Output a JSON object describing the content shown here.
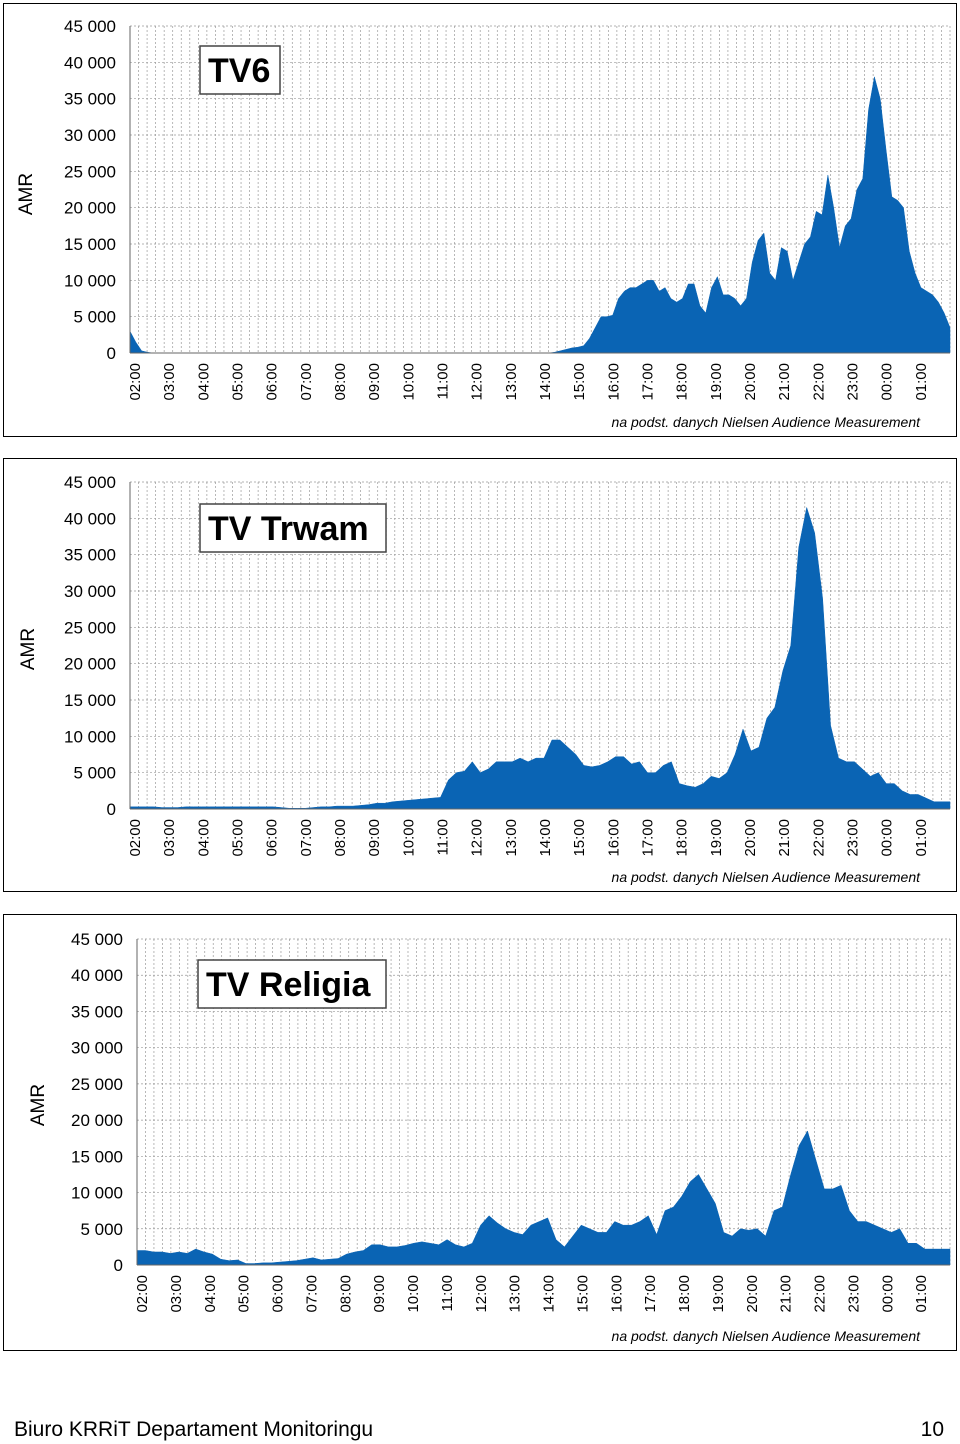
{
  "chart_data": [
    {
      "type": "area",
      "title": "TV6",
      "ylabel": "AMR",
      "credit": "na podst. danych Nielsen  Audience Measurement",
      "ylim": [
        0,
        45000
      ],
      "yticks": [
        "45 000",
        "40 000",
        "35 000",
        "30 000",
        "25 000",
        "20 000",
        "15 000",
        "10 000",
        "5 000",
        "0"
      ],
      "xticks": [
        "02:00",
        "03:00",
        "04:00",
        "05:00",
        "06:00",
        "07:00",
        "08:00",
        "09:00",
        "10:00",
        "11:00",
        "12:00",
        "13:00",
        "14:00",
        "15:00",
        "16:00",
        "17:00",
        "18:00",
        "19:00",
        "20:00",
        "21:00",
        "22:00",
        "23:00",
        "00:00",
        "01:00"
      ],
      "color": "#0a64b4",
      "values": [
        3000,
        1500,
        300,
        100,
        0,
        0,
        0,
        0,
        0,
        0,
        0,
        0,
        0,
        0,
        0,
        0,
        0,
        0,
        0,
        0,
        0,
        0,
        0,
        0,
        0,
        0,
        0,
        0,
        0,
        0,
        0,
        0,
        0,
        0,
        0,
        0,
        0,
        0,
        0,
        0,
        0,
        0,
        0,
        0,
        0,
        0,
        0,
        0,
        0,
        0,
        0,
        0,
        0,
        0,
        0,
        0,
        0,
        0,
        0,
        0,
        0,
        0,
        0,
        0,
        0,
        0,
        0,
        0,
        0,
        0,
        0,
        0,
        0,
        100,
        300,
        500,
        700,
        800,
        1000,
        2000,
        3500,
        5000,
        5000,
        5200,
        7500,
        8500,
        9000,
        9000,
        9500,
        10000,
        10000,
        8500,
        9000,
        7500,
        7000,
        7500,
        9500,
        9500,
        6500,
        5500,
        9000,
        10500,
        8000,
        8000,
        7500,
        6500,
        7500,
        12500,
        15500,
        16500,
        11000,
        10000,
        14500,
        14000,
        10000,
        12500,
        15000,
        16000,
        19500,
        19000,
        24500,
        20000,
        14500,
        17500,
        18500,
        22500,
        24000,
        33500,
        38000,
        35000,
        28000,
        21500,
        21000,
        20000,
        14000,
        11000,
        9000,
        8500,
        8000,
        7000,
        5500,
        3500
      ]
    },
    {
      "type": "area",
      "title": "TV Trwam",
      "ylabel": "AMR",
      "credit": "na podst. danych Nielsen  Audience Measurement",
      "ylim": [
        0,
        45000
      ],
      "yticks": [
        "45 000",
        "40 000",
        "35 000",
        "30 000",
        "25 000",
        "20 000",
        "15 000",
        "10 000",
        "5 000",
        "0"
      ],
      "xticks": [
        "02:00",
        "03:00",
        "04:00",
        "05:00",
        "06:00",
        "07:00",
        "08:00",
        "09:00",
        "10:00",
        "11:00",
        "12:00",
        "13:00",
        "14:00",
        "15:00",
        "16:00",
        "17:00",
        "18:00",
        "19:00",
        "20:00",
        "21:00",
        "22:00",
        "23:00",
        "00:00",
        "01:00"
      ],
      "color": "#0a64b4",
      "values": [
        300,
        300,
        300,
        300,
        200,
        200,
        200,
        300,
        300,
        300,
        300,
        300,
        300,
        300,
        300,
        300,
        300,
        300,
        300,
        200,
        100,
        100,
        100,
        200,
        300,
        300,
        400,
        400,
        400,
        500,
        600,
        800,
        800,
        1000,
        1100,
        1200,
        1300,
        1400,
        1500,
        1600,
        4000,
        5000,
        5200,
        6500,
        5000,
        5500,
        6500,
        6500,
        6500,
        7000,
        6500,
        7000,
        7000,
        9500,
        9500,
        8500,
        7500,
        6000,
        5800,
        6000,
        6500,
        7200,
        7200,
        6200,
        6500,
        5000,
        5000,
        6000,
        6500,
        3500,
        3200,
        3000,
        3500,
        4500,
        4200,
        5000,
        7500,
        11000,
        8000,
        8500,
        12500,
        14000,
        19000,
        22500,
        36000,
        41500,
        38000,
        29000,
        11500,
        7000,
        6500,
        6500,
        5500,
        4500,
        5000,
        3500,
        3500,
        2500,
        2000,
        2000,
        1500,
        1000,
        1000,
        1000
      ]
    },
    {
      "type": "area",
      "title": "TV Religia",
      "ylabel": "AMR",
      "credit": "na podst. danych Nielsen  Audience Measurement",
      "ylim": [
        0,
        45000
      ],
      "yticks": [
        "45 000",
        "40 000",
        "35 000",
        "30 000",
        "25 000",
        "20 000",
        "15 000",
        "10 000",
        "5 000",
        "0"
      ],
      "xticks": [
        "02:00",
        "03:00",
        "04:00",
        "05:00",
        "06:00",
        "07:00",
        "08:00",
        "09:00",
        "10:00",
        "11:00",
        "12:00",
        "13:00",
        "14:00",
        "15:00",
        "16:00",
        "17:00",
        "18:00",
        "19:00",
        "20:00",
        "21:00",
        "22:00",
        "23:00",
        "00:00",
        "01:00"
      ],
      "color": "#0a64b4",
      "values": [
        2000,
        2000,
        1800,
        1800,
        1600,
        1800,
        1600,
        2200,
        1800,
        1500,
        800,
        600,
        700,
        200,
        200,
        300,
        300,
        400,
        500,
        600,
        800,
        1000,
        700,
        800,
        900,
        1500,
        1800,
        2000,
        2800,
        2800,
        2500,
        2500,
        2700,
        3000,
        3200,
        3000,
        2800,
        3500,
        2800,
        2500,
        3000,
        5500,
        6800,
        5800,
        5000,
        4500,
        4200,
        5500,
        6000,
        6500,
        3500,
        2500,
        4000,
        5500,
        5000,
        4500,
        4500,
        6000,
        5500,
        5500,
        6000,
        6800,
        4200,
        7500,
        8000,
        9500,
        11500,
        12500,
        10500,
        8500,
        4500,
        4000,
        5000,
        4800,
        5000,
        4000,
        7500,
        8000,
        12500,
        16500,
        18500,
        14500,
        10500,
        10500,
        11000,
        7500,
        6000,
        6000,
        5500,
        5000,
        4500,
        5000,
        3000,
        3000,
        2200,
        2200,
        2200,
        2200
      ]
    }
  ],
  "footer": {
    "left": "Biuro KRRiT Departament Monitoringu",
    "page_number": "10"
  }
}
